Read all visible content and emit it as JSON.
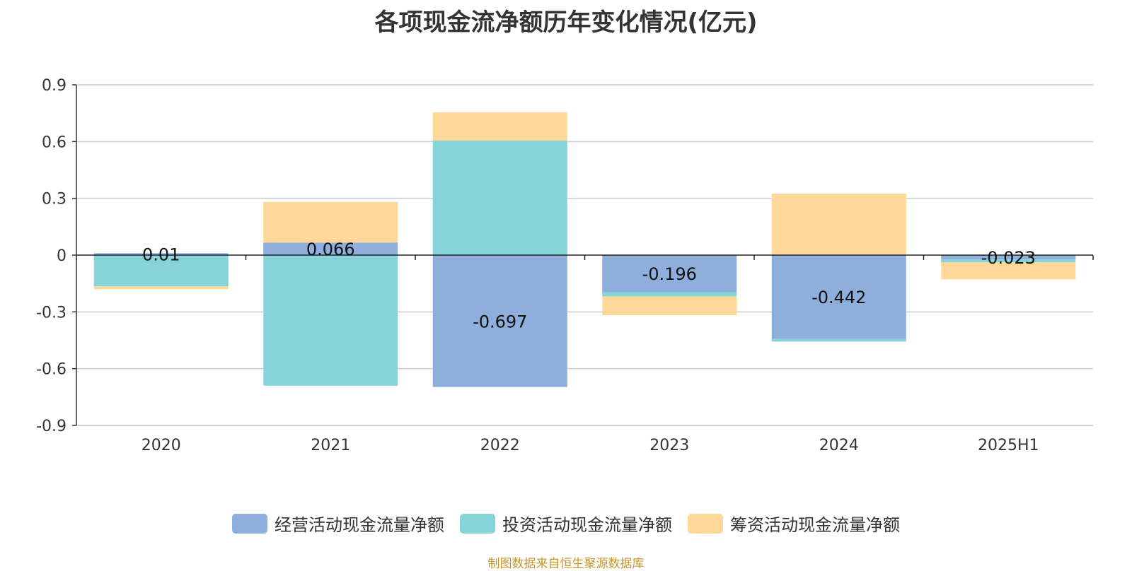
{
  "chart_data": {
    "type": "bar",
    "stacked": true,
    "title": "各项现金流净额历年变化情况(亿元)",
    "categories": [
      "2020",
      "2021",
      "2022",
      "2023",
      "2024",
      "2025H1"
    ],
    "ylim": [
      -0.9,
      0.9
    ],
    "yticks": [
      "0.9",
      "0.6",
      "0.3",
      "0",
      "-0.3",
      "-0.6",
      "-0.9"
    ],
    "ytick_values": [
      0.9,
      0.6,
      0.3,
      0,
      -0.3,
      -0.6,
      -0.9
    ],
    "grid": true,
    "legend_position": "bottom",
    "series": [
      {
        "name": "经营活动现金流量净额",
        "color": "#8eaedb",
        "values": [
          0.01,
          0.066,
          -0.697,
          -0.196,
          -0.442,
          -0.023
        ],
        "labels": [
          "0.01",
          "0.066",
          "-0.697",
          "-0.196",
          "-0.442",
          "-0.023"
        ]
      },
      {
        "name": "投资活动现金流量净额",
        "color": "#86d4d8",
        "values": [
          -0.165,
          -0.69,
          0.605,
          -0.022,
          -0.015,
          -0.015
        ]
      },
      {
        "name": "筹资活动现金流量净额",
        "color": "#ffd899",
        "values": [
          -0.015,
          0.215,
          0.15,
          -0.1,
          0.325,
          -0.09
        ]
      }
    ]
  },
  "source_note": "制图数据来自恒生聚源数据库"
}
